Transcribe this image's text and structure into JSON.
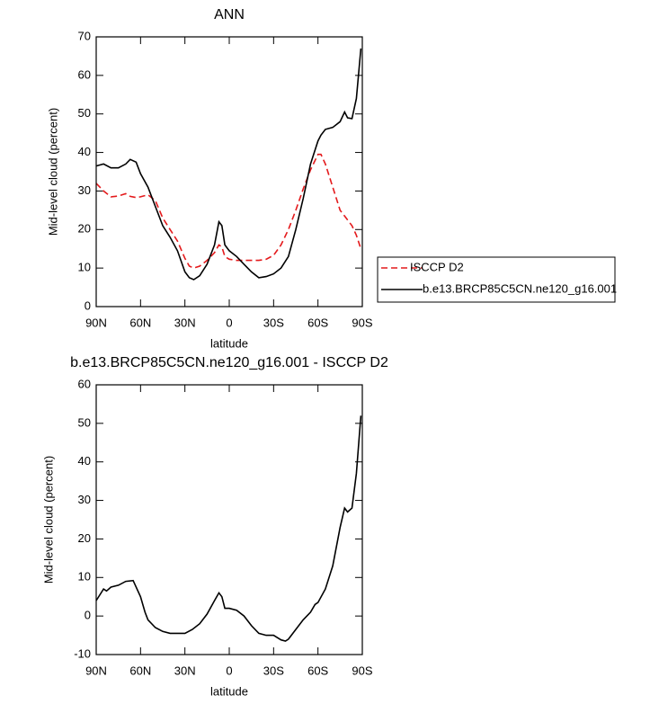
{
  "chart_data": [
    {
      "type": "line",
      "title": "ANN",
      "x_label": "latitude",
      "y_label": "Mid-level cloud (percent)",
      "x": [
        90,
        85,
        80,
        75,
        70,
        67,
        63,
        60,
        55,
        50,
        45,
        40,
        35,
        30,
        27,
        24,
        20,
        15,
        10,
        7,
        5,
        3,
        0,
        -5,
        -10,
        -15,
        -20,
        -25,
        -30,
        -35,
        -40,
        -45,
        -50,
        -55,
        -60,
        -62,
        -65,
        -70,
        -75,
        -78,
        -80,
        -83,
        -86,
        -89
      ],
      "series": [
        {
          "name": "ISCCP D2",
          "color": "#e41a1c",
          "dash": true,
          "values": [
            32,
            30,
            28.5,
            28.7,
            29.3,
            28.6,
            28.3,
            28.5,
            29,
            27.5,
            23,
            20,
            17,
            12.5,
            10.5,
            10,
            10.5,
            12,
            14,
            16,
            15.5,
            13,
            12.3,
            12,
            12,
            12,
            12,
            12.3,
            13.3,
            16,
            20,
            25,
            30.5,
            35.5,
            39.5,
            39.5,
            37,
            31,
            25,
            23.5,
            22.5,
            21,
            18.5,
            15
          ]
        },
        {
          "name": "b.e13.BRCP85C5CN.ne120_g16.001",
          "color": "#000000",
          "dash": false,
          "values": [
            36.5,
            37,
            36,
            36,
            37,
            38.2,
            37.5,
            34.5,
            31,
            26,
            21,
            18,
            14.5,
            9,
            7.5,
            7,
            8,
            11,
            16,
            22,
            21,
            16,
            14.5,
            13,
            11,
            9,
            7.5,
            7.8,
            8.5,
            10,
            13,
            20,
            28,
            37,
            43,
            44.5,
            46,
            46.5,
            48,
            50.5,
            49,
            48.8,
            54,
            67
          ]
        }
      ],
      "xlim": [
        90,
        -90
      ],
      "xticks": [
        {
          "value": 90,
          "label": "90N"
        },
        {
          "value": 60,
          "label": "60N"
        },
        {
          "value": 30,
          "label": "30N"
        },
        0,
        {
          "value": -30,
          "label": "30S"
        },
        {
          "value": -60,
          "label": "60S"
        },
        {
          "value": -90,
          "label": "90S"
        }
      ],
      "ylim": [
        0,
        70
      ],
      "yticks": [
        0,
        10,
        20,
        30,
        40,
        50,
        60,
        70
      ],
      "grid": false,
      "legend": "right"
    },
    {
      "type": "line",
      "title": "b.e13.BRCP85C5CN.ne120_g16.001 - ISCCP D2",
      "x_label": "latitude",
      "y_label": "Mid-level cloud (percent)",
      "x": [
        90,
        85,
        83,
        80,
        75,
        70,
        65,
        60,
        57,
        55,
        50,
        45,
        40,
        35,
        30,
        25,
        20,
        15,
        10,
        7,
        5,
        3,
        0,
        -5,
        -10,
        -15,
        -20,
        -25,
        -30,
        -35,
        -38,
        -40,
        -45,
        -50,
        -55,
        -58,
        -60,
        -65,
        -70,
        -75,
        -78,
        -80,
        -83,
        -86,
        -89
      ],
      "series": [
        {
          "color": "#000000",
          "dash": false,
          "values": [
            4,
            7,
            6.5,
            7.5,
            8,
            9,
            9.2,
            5,
            1,
            -1,
            -3,
            -4,
            -4.5,
            -4.5,
            -4.5,
            -3.5,
            -2,
            0.5,
            4,
            6,
            5,
            2,
            2,
            1.5,
            0,
            -2.5,
            -4.5,
            -5,
            -5,
            -6.2,
            -6.5,
            -6,
            -3.5,
            -1,
            1,
            3,
            3.5,
            7,
            13,
            23,
            28,
            27,
            28,
            37,
            52
          ]
        }
      ],
      "xlim": [
        90,
        -90
      ],
      "xticks": [
        {
          "value": 90,
          "label": "90N"
        },
        {
          "value": 60,
          "label": "60N"
        },
        {
          "value": 30,
          "label": "30N"
        },
        0,
        {
          "value": -30,
          "label": "30S"
        },
        {
          "value": -60,
          "label": "60S"
        },
        {
          "value": -90,
          "label": "90S"
        }
      ],
      "ylim": [
        -10,
        60
      ],
      "yticks": [
        -10,
        0,
        10,
        20,
        30,
        40,
        50,
        60
      ],
      "grid": false
    }
  ]
}
